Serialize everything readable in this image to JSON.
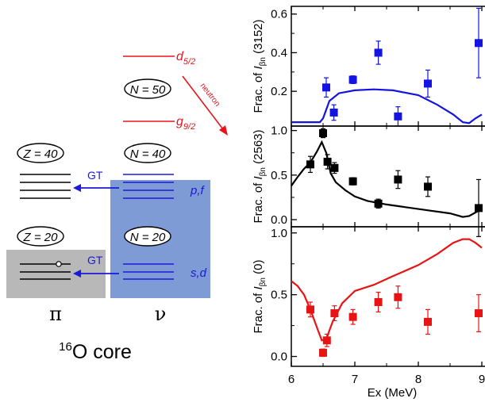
{
  "diagram": {
    "levels": {
      "d52": "d",
      "d52_sub": "5/2",
      "g92": "g",
      "g92_sub": "9/2",
      "n50": "N = 50",
      "n40": "N = 40",
      "n20": "N = 20",
      "z40": "Z = 40",
      "z20": "Z = 20",
      "pf": "p,f",
      "sd": "s,d"
    },
    "arrows": {
      "gt_upper": "GT",
      "gt_lower": "GT",
      "neutron": "neutron"
    },
    "columns": {
      "proton": "π",
      "neutron": "ν"
    },
    "core": {
      "mass": "16",
      "label": "O core"
    },
    "colors": {
      "red": "#e8141c",
      "blue": "#1a1ad8",
      "proton_box": "#b8b8b8",
      "neutron_box": "#7f9bd6"
    }
  },
  "chart_data": [
    {
      "type": "scatter",
      "ylabel_main": "Frac. of I",
      "ylabel_sub": "βn",
      "ylabel_tail": " (3152)",
      "ylim": [
        0.02,
        0.64
      ],
      "yticks": [
        "0.2",
        "0.4",
        "0.6"
      ],
      "ytick_values": [
        0.2,
        0.4,
        0.6
      ],
      "color": "#1414e0",
      "points": [
        {
          "x": 6.55,
          "y": 0.22,
          "err": 0.05
        },
        {
          "x": 6.67,
          "y": 0.09,
          "err": 0.04
        },
        {
          "x": 6.97,
          "y": 0.26,
          "err": 0.02
        },
        {
          "x": 7.37,
          "y": 0.4,
          "err": 0.06
        },
        {
          "x": 7.68,
          "y": 0.07,
          "err": 0.05
        },
        {
          "x": 8.15,
          "y": 0.24,
          "err": 0.07
        },
        {
          "x": 8.95,
          "y": 0.45,
          "err": 0.18
        }
      ],
      "curve": [
        [
          6.0,
          0.04
        ],
        [
          6.45,
          0.04
        ],
        [
          6.5,
          0.06
        ],
        [
          6.6,
          0.15
        ],
        [
          6.75,
          0.19
        ],
        [
          7.0,
          0.205
        ],
        [
          7.3,
          0.21
        ],
        [
          7.6,
          0.205
        ],
        [
          8.0,
          0.18
        ],
        [
          8.3,
          0.13
        ],
        [
          8.55,
          0.08
        ],
        [
          8.7,
          0.04
        ],
        [
          8.8,
          0.035
        ],
        [
          8.9,
          0.06
        ],
        [
          9.0,
          0.08
        ]
      ]
    },
    {
      "type": "scatter",
      "ylabel_main": "Frac. of I",
      "ylabel_sub": "βn",
      "ylabel_tail": " (2563)",
      "ylim": [
        -0.08,
        1.05
      ],
      "yticks": [
        "0.0",
        "0.5",
        "1.0"
      ],
      "ytick_values": [
        0.0,
        0.5,
        1.0
      ],
      "color": "#000000",
      "points": [
        {
          "x": 6.3,
          "y": 0.62,
          "err": 0.09
        },
        {
          "x": 6.5,
          "y": 0.97,
          "err": 0.05
        },
        {
          "x": 6.57,
          "y": 0.65,
          "err": 0.08
        },
        {
          "x": 6.68,
          "y": 0.58,
          "err": 0.06
        },
        {
          "x": 6.97,
          "y": 0.43,
          "err": 0.04
        },
        {
          "x": 7.37,
          "y": 0.18,
          "err": 0.05
        },
        {
          "x": 7.68,
          "y": 0.45,
          "err": 0.1
        },
        {
          "x": 8.15,
          "y": 0.37,
          "err": 0.11
        },
        {
          "x": 8.95,
          "y": 0.13,
          "err": 0.32
        }
      ],
      "curve": [
        [
          6.0,
          0.38
        ],
        [
          6.1,
          0.48
        ],
        [
          6.2,
          0.57
        ],
        [
          6.3,
          0.64
        ],
        [
          6.4,
          0.76
        ],
        [
          6.48,
          0.87
        ],
        [
          6.55,
          0.75
        ],
        [
          6.62,
          0.52
        ],
        [
          6.7,
          0.42
        ],
        [
          6.85,
          0.33
        ],
        [
          7.0,
          0.26
        ],
        [
          7.2,
          0.21
        ],
        [
          7.5,
          0.17
        ],
        [
          7.8,
          0.14
        ],
        [
          8.2,
          0.1
        ],
        [
          8.5,
          0.07
        ],
        [
          8.7,
          0.03
        ],
        [
          8.8,
          0.04
        ],
        [
          8.9,
          0.08
        ],
        [
          9.0,
          0.12
        ]
      ]
    },
    {
      "type": "scatter",
      "ylabel_main": "Frac. of I",
      "ylabel_sub": "βn",
      "ylabel_tail": " (0)",
      "ylim": [
        -0.08,
        1.05
      ],
      "yticks": [
        "0.0",
        "0.5",
        "1.0"
      ],
      "ytick_values": [
        0.0,
        0.5,
        1.0
      ],
      "color": "#e81414",
      "xlabel": "Ex (MeV)",
      "xticks": [
        "6",
        "7",
        "8",
        "9"
      ],
      "xtick_values": [
        6,
        7,
        8,
        9
      ],
      "xlim": [
        6.0,
        9.05
      ],
      "points": [
        {
          "x": 6.3,
          "y": 0.38,
          "err": 0.06
        },
        {
          "x": 6.5,
          "y": 0.03,
          "err": 0.03
        },
        {
          "x": 6.56,
          "y": 0.13,
          "err": 0.05
        },
        {
          "x": 6.68,
          "y": 0.35,
          "err": 0.06
        },
        {
          "x": 6.97,
          "y": 0.32,
          "err": 0.06
        },
        {
          "x": 7.37,
          "y": 0.44,
          "err": 0.08
        },
        {
          "x": 7.68,
          "y": 0.48,
          "err": 0.09
        },
        {
          "x": 8.15,
          "y": 0.28,
          "err": 0.1
        },
        {
          "x": 8.95,
          "y": 0.35,
          "err": 0.15
        }
      ],
      "curve": [
        [
          6.0,
          0.61
        ],
        [
          6.1,
          0.57
        ],
        [
          6.2,
          0.5
        ],
        [
          6.3,
          0.38
        ],
        [
          6.4,
          0.24
        ],
        [
          6.48,
          0.13
        ],
        [
          6.55,
          0.14
        ],
        [
          6.65,
          0.28
        ],
        [
          6.8,
          0.43
        ],
        [
          7.0,
          0.53
        ],
        [
          7.3,
          0.58
        ],
        [
          7.6,
          0.65
        ],
        [
          8.0,
          0.74
        ],
        [
          8.3,
          0.83
        ],
        [
          8.55,
          0.92
        ],
        [
          8.7,
          0.95
        ],
        [
          8.8,
          0.95
        ],
        [
          8.9,
          0.92
        ],
        [
          9.0,
          0.88
        ]
      ]
    }
  ]
}
